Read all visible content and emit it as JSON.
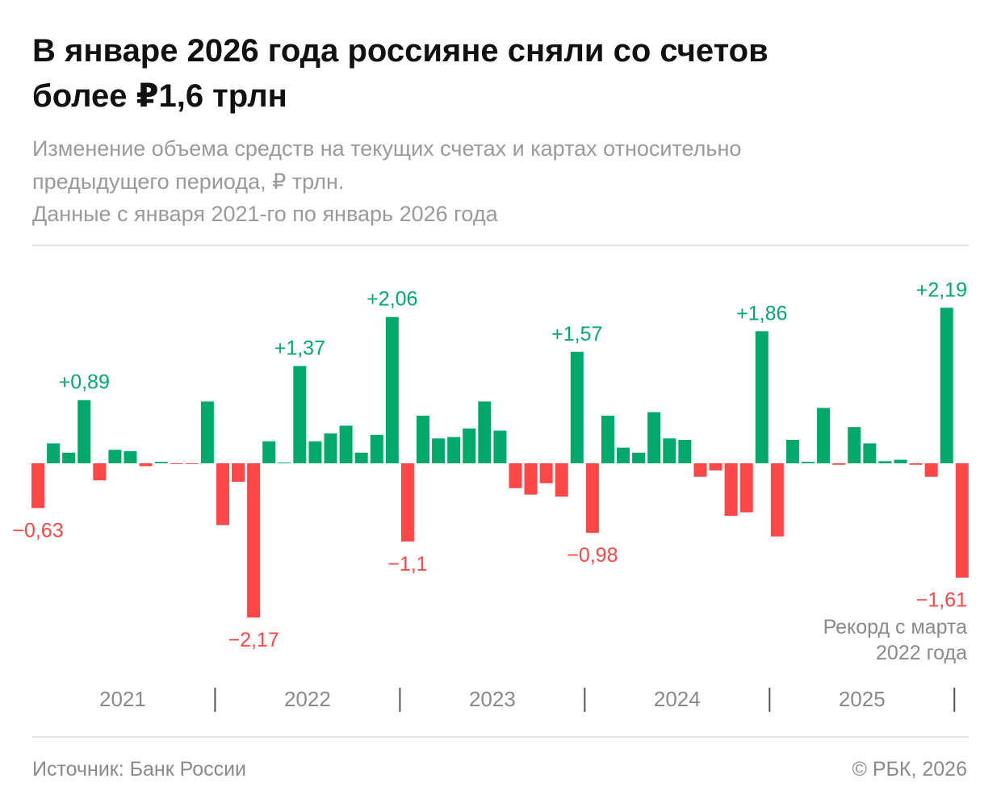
{
  "chart_data": {
    "type": "bar",
    "title": [
      "В январе 2026 года россияне сняли со счетов",
      "более ₽1,6 трлн"
    ],
    "subtitle": [
      "Изменение объема средств на текущих счетах и картах относительно",
      "предыдущего периода, ₽ трлн.",
      "Данные с января 2021-го по январь 2026 года"
    ],
    "year_labels": [
      "2021",
      "2022",
      "2023",
      "2024",
      "2025"
    ],
    "values": [
      -0.63,
      0.28,
      0.15,
      0.89,
      -0.24,
      0.19,
      0.17,
      -0.04,
      0.02,
      -0.01,
      -0.01,
      0.87,
      -0.87,
      -0.26,
      -2.17,
      0.31,
      0.01,
      1.37,
      0.31,
      0.42,
      0.53,
      0.15,
      0.4,
      2.06,
      -1.1,
      0.67,
      0.35,
      0.37,
      0.49,
      0.87,
      0.46,
      -0.35,
      -0.44,
      -0.28,
      -0.47,
      1.57,
      -0.98,
      0.67,
      0.22,
      0.15,
      0.72,
      0.35,
      0.33,
      -0.19,
      -0.1,
      -0.74,
      -0.69,
      1.86,
      -1.03,
      0.33,
      0.02,
      0.78,
      -0.02,
      0.51,
      0.28,
      0.03,
      0.05,
      -0.02,
      -0.19,
      2.19,
      -1.61
    ],
    "value_labels": [
      "−0,63",
      null,
      null,
      "+0,89",
      null,
      null,
      null,
      null,
      null,
      null,
      null,
      null,
      null,
      null,
      "−2,17",
      null,
      null,
      "+1,37",
      null,
      null,
      null,
      null,
      null,
      "+2,06",
      "−1,1",
      null,
      null,
      null,
      null,
      null,
      null,
      null,
      null,
      null,
      null,
      "+1,57",
      "−0,98",
      null,
      null,
      null,
      null,
      null,
      null,
      null,
      null,
      null,
      null,
      "+1,86",
      null,
      null,
      null,
      null,
      null,
      null,
      null,
      null,
      null,
      null,
      null,
      "+2,19",
      "−1,61"
    ],
    "positive_color": "#00a86b",
    "negative_color": "#ff4747",
    "ylim": [
      -2.5,
      2.5
    ],
    "annotation": [
      "Рекорд с марта",
      "2022 года"
    ],
    "source": "Источник: Банк России",
    "credit": "© РБК, 2026"
  }
}
